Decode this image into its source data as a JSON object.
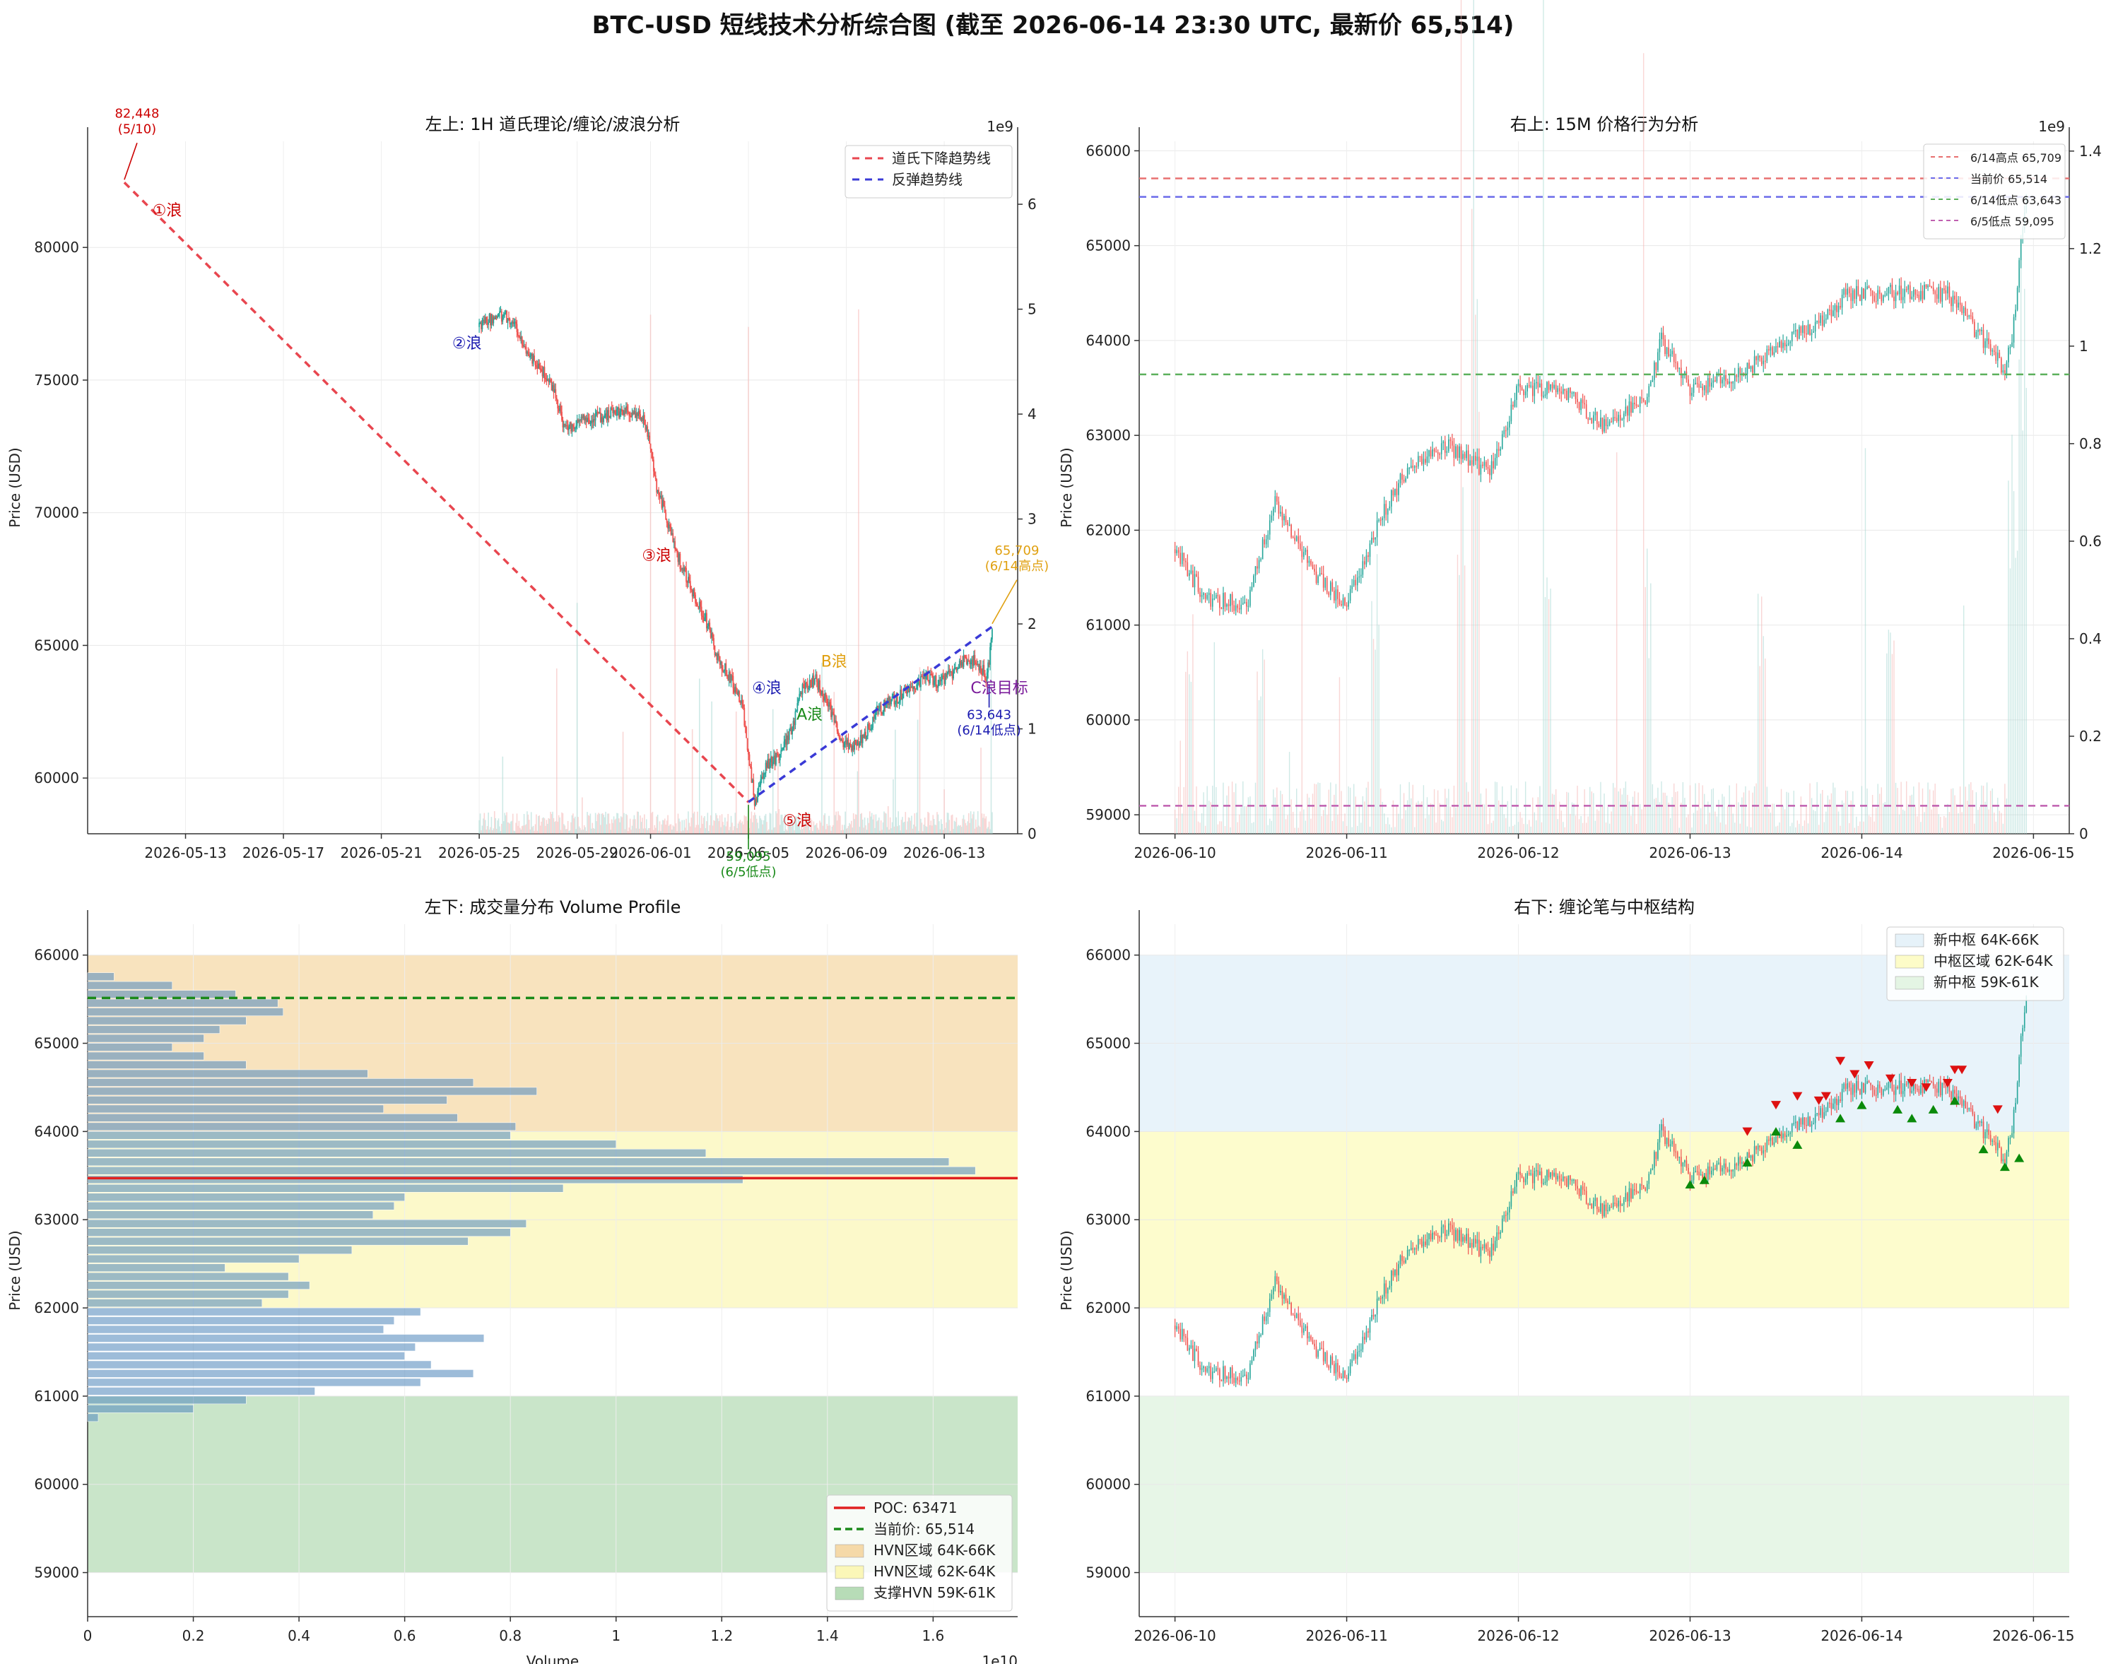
{
  "title": "BTC-USD 短线技术分析综合图 (截至 2026-06-14 23:30 UTC, 最新价 65,514)",
  "colors": {
    "up": "#26a69a",
    "down": "#ef5350",
    "upVol": "#a7d8d2",
    "downVol": "#f5b5b3"
  },
  "chart_data": [
    {
      "id": "tl",
      "type": "candlestick",
      "title": "左上: 1H 道氏理论/缠论/波浪分析",
      "ylabel": "Price (USD)",
      "ylim": [
        57900,
        84000
      ],
      "yticks": [
        60000,
        65000,
        70000,
        75000,
        80000
      ],
      "xlim": [
        "2026-05-09",
        "2026-06-16"
      ],
      "xticks": [
        "2026-05-13",
        "2026-05-17",
        "2026-05-21",
        "2026-05-25",
        "2026-05-29",
        "2026-06-01",
        "2026-06-05",
        "2026-06-09",
        "2026-06-13"
      ],
      "y2_exponent": "1e9",
      "y2lim": [
        0,
        6.6
      ],
      "y2ticks": [
        0,
        1,
        2,
        3,
        4,
        5,
        6
      ],
      "price_path": [
        [
          "2026-05-25 00:00",
          77000
        ],
        [
          "2026-05-25 18:00",
          77500
        ],
        [
          "2026-05-26 06:00",
          77300
        ],
        [
          "2026-05-26 18:00",
          76500
        ],
        [
          "2026-05-27 06:00",
          75700
        ],
        [
          "2026-05-28 00:00",
          74800
        ],
        [
          "2026-05-28 12:00",
          73200
        ],
        [
          "2026-05-29 06:00",
          73500
        ],
        [
          "2026-05-30 00:00",
          73600
        ],
        [
          "2026-05-31 00:00",
          73900
        ],
        [
          "2026-05-31 18:00",
          73500
        ],
        [
          "2026-06-01 06:00",
          71000
        ],
        [
          "2026-06-01 18:00",
          69500
        ],
        [
          "2026-06-02 06:00",
          68000
        ],
        [
          "2026-06-02 18:00",
          67000
        ],
        [
          "2026-06-03 06:00",
          66000
        ],
        [
          "2026-06-03 18:00",
          64500
        ],
        [
          "2026-06-04 06:00",
          63800
        ],
        [
          "2026-06-04 18:00",
          62800
        ],
        [
          "2026-06-05 06:00",
          59100
        ],
        [
          "2026-06-05 18:00",
          60500
        ],
        [
          "2026-06-06 06:00",
          60800
        ],
        [
          "2026-06-06 18:00",
          61800
        ],
        [
          "2026-06-07 06:00",
          63500
        ],
        [
          "2026-06-07 18:00",
          63700
        ],
        [
          "2026-06-08 06:00",
          62800
        ],
        [
          "2026-06-08 18:00",
          61400
        ],
        [
          "2026-06-09 06:00",
          61200
        ],
        [
          "2026-06-09 18:00",
          61600
        ],
        [
          "2026-06-10 06:00",
          62500
        ],
        [
          "2026-06-11 00:00",
          63000
        ],
        [
          "2026-06-11 18:00",
          63500
        ],
        [
          "2026-06-12 06:00",
          63800
        ],
        [
          "2026-06-12 18:00",
          63600
        ],
        [
          "2026-06-13 06:00",
          63900
        ],
        [
          "2026-06-13 18:00",
          64400
        ],
        [
          "2026-06-14 06:00",
          64500
        ],
        [
          "2026-06-14 18:00",
          63800
        ],
        [
          "2026-06-14 23:00",
          65500
        ]
      ],
      "price_noise": 500,
      "volume_start": "2026-05-25",
      "volume_end": "2026-06-14 23:00",
      "volume_base": 0.12,
      "volume_spikes": [
        [
          "2026-05-29",
          2.8
        ],
        [
          "2026-06-01",
          5.4
        ],
        [
          "2026-06-02",
          3.0
        ],
        [
          "2026-06-03",
          1.8
        ],
        [
          "2026-06-04 12:00",
          1.5
        ],
        [
          "2026-06-05",
          5.2
        ],
        [
          "2026-06-06",
          1.6
        ],
        [
          "2026-06-08",
          2.1
        ],
        [
          "2026-06-09 12:00",
          5.0
        ],
        [
          "2026-06-11",
          1.4
        ],
        [
          "2026-06-12",
          1.8
        ],
        [
          "2026-06-14 12:00",
          1.0
        ],
        [
          "2026-06-14 22:00",
          2.2
        ]
      ],
      "lines": [
        {
          "name": "道氏下降趋势线",
          "color": "#e8464f",
          "points": [
            [
              "2026-05-10 12:00",
              82448
            ],
            [
              "2026-06-05 00:00",
              59095
            ]
          ]
        },
        {
          "name": "反弹趋势线",
          "color": "#3a3ad6",
          "points": [
            [
              "2026-06-05 00:00",
              59095
            ],
            [
              "2026-06-14 23:00",
              65709
            ]
          ]
        }
      ],
      "legend_position": "top-right",
      "annotations": [
        {
          "text": "82,448\n(5/10)",
          "color": "#cc0000",
          "x": "2026-05-10 12:00",
          "y": 82448,
          "dx": 18,
          "dy": -70
        },
        {
          "text": "59,095\n(6/5低点)",
          "color": "#1a8a1a",
          "x": "2026-06-05 00:00",
          "y": 59095,
          "dx": 0,
          "dy": 85
        },
        {
          "text": "65,709\n(6/14高点)",
          "color": "#e0a010",
          "x": "2026-06-14 23:00",
          "y": 65709,
          "dx": 35,
          "dy": -80
        },
        {
          "text": "63,643\n(6/14低点)",
          "color": "#1a1ab0",
          "x": "2026-06-14 20:00",
          "y": 63643,
          "dx": 0,
          "dy": 55
        }
      ],
      "wave_labels": [
        {
          "text": "①浪",
          "color": "#cc0000",
          "x": "2026-05-12 06:00",
          "y": 81200
        },
        {
          "text": "②浪",
          "color": "#1a1ab0",
          "x": "2026-05-24 12:00",
          "y": 76200
        },
        {
          "text": "③浪",
          "color": "#cc0000",
          "x": "2026-06-01 06:00",
          "y": 68200
        },
        {
          "text": "④浪",
          "color": "#1a1ab0",
          "x": "2026-06-05 18:00",
          "y": 63200
        },
        {
          "text": "⑤浪",
          "color": "#cc0000",
          "x": "2026-06-07 00:00",
          "y": 58200
        },
        {
          "text": "A浪",
          "color": "#1a8a1a",
          "x": "2026-06-07 12:00",
          "y": 62200
        },
        {
          "text": "B浪",
          "color": "#e0a010",
          "x": "2026-06-08 12:00",
          "y": 64200
        },
        {
          "text": "C浪目标",
          "color": "#7a1a9a",
          "x": "2026-06-15 06:00",
          "y": 63200
        }
      ]
    },
    {
      "id": "tr",
      "type": "candlestick",
      "title": "右上: 15M 价格行为分析",
      "ylabel": "Price (USD)",
      "ylim": [
        58800,
        66100
      ],
      "yticks": [
        59000,
        60000,
        61000,
        62000,
        63000,
        64000,
        65000,
        66000
      ],
      "xlim": [
        "2026-06-09 19:00",
        "2026-06-15 05:00"
      ],
      "xticks": [
        "2026-06-10",
        "2026-06-11",
        "2026-06-12",
        "2026-06-13",
        "2026-06-14",
        "2026-06-15"
      ],
      "y2_exponent": "1e9",
      "y2lim": [
        0,
        1.42
      ],
      "y2ticks": [
        0,
        0.2,
        0.4,
        0.6,
        0.8,
        1.0,
        1.2,
        1.4
      ],
      "price_path": [
        [
          "2026-06-10 00:00",
          61800
        ],
        [
          "2026-06-10 04:00",
          61300
        ],
        [
          "2026-06-10 10:00",
          61200
        ],
        [
          "2026-06-10 14:00",
          62300
        ],
        [
          "2026-06-10 20:00",
          61500
        ],
        [
          "2026-06-11 00:00",
          61200
        ],
        [
          "2026-06-11 04:00",
          62000
        ],
        [
          "2026-06-11 08:00",
          62600
        ],
        [
          "2026-06-11 14:00",
          62900
        ],
        [
          "2026-06-11 20:00",
          62600
        ],
        [
          "2026-06-12 00:00",
          63500
        ],
        [
          "2026-06-12 06:00",
          63500
        ],
        [
          "2026-06-12 12:00",
          63100
        ],
        [
          "2026-06-12 18:00",
          63400
        ],
        [
          "2026-06-12 20:00",
          64000
        ],
        [
          "2026-06-13 00:00",
          63500
        ],
        [
          "2026-06-13 06:00",
          63600
        ],
        [
          "2026-06-13 12:00",
          63900
        ],
        [
          "2026-06-13 18:00",
          64200
        ],
        [
          "2026-06-13 22:00",
          64500
        ],
        [
          "2026-06-14 06:00",
          64500
        ],
        [
          "2026-06-14 12:00",
          64500
        ],
        [
          "2026-06-14 18:00",
          63900
        ],
        [
          "2026-06-14 20:00",
          63700
        ],
        [
          "2026-06-14 21:00",
          64000
        ],
        [
          "2026-06-14 23:00",
          65600
        ]
      ],
      "price_noise": 180,
      "volume_start": "2026-06-10 00:00",
      "volume_end": "2026-06-14 23:00",
      "volume_base": 0.06,
      "volume_spikes": [
        [
          "2026-06-10 02:00",
          0.5
        ],
        [
          "2026-06-10 12:00",
          0.45
        ],
        [
          "2026-06-11 04:00",
          0.6
        ],
        [
          "2026-06-11 16:00",
          0.75
        ],
        [
          "2026-06-11 18:00",
          1.35
        ],
        [
          "2026-06-12 04:00",
          0.55
        ],
        [
          "2026-06-12 18:00",
          0.6
        ],
        [
          "2026-06-13 10:00",
          0.5
        ],
        [
          "2026-06-14 04:00",
          0.45
        ],
        [
          "2026-06-14 21:00",
          0.85
        ],
        [
          "2026-06-14 22:30",
          1.3
        ]
      ],
      "hlines": [
        {
          "label": "6/14高点 65,709",
          "value": 65709,
          "color": "#e87070"
        },
        {
          "label": "当前价 65,514",
          "value": 65514,
          "color": "#6b6bea"
        },
        {
          "label": "6/14低点 63,643",
          "value": 63643,
          "color": "#5cb05c"
        },
        {
          "label": "6/5低点 59,095",
          "value": 59095,
          "color": "#c060b0"
        }
      ],
      "legend_position": "top-right"
    },
    {
      "id": "bl",
      "type": "volume_profile",
      "title": "左下: 成交量分布 Volume Profile",
      "ylabel": "Price (USD)",
      "xlabel": "Volume",
      "x_exponent": "1e10",
      "xlim": [
        0,
        1.76
      ],
      "xticks": [
        0,
        0.2,
        0.4,
        0.6,
        0.8,
        1.0,
        1.2,
        1.4,
        1.6
      ],
      "ylim": [
        58500,
        66350
      ],
      "yticks": [
        59000,
        60000,
        61000,
        62000,
        63000,
        64000,
        65000,
        66000
      ],
      "bins": [
        [
          60700,
          0.02
        ],
        [
          60800,
          0.2
        ],
        [
          60900,
          0.3
        ],
        [
          61000,
          0.43
        ],
        [
          61100,
          0.63
        ],
        [
          61200,
          0.73
        ],
        [
          61300,
          0.65
        ],
        [
          61400,
          0.6
        ],
        [
          61500,
          0.62
        ],
        [
          61600,
          0.75
        ],
        [
          61700,
          0.56
        ],
        [
          61800,
          0.58
        ],
        [
          61900,
          0.63
        ],
        [
          62000,
          0.33
        ],
        [
          62100,
          0.38
        ],
        [
          62200,
          0.42
        ],
        [
          62300,
          0.38
        ],
        [
          62400,
          0.26
        ],
        [
          62500,
          0.4
        ],
        [
          62600,
          0.5
        ],
        [
          62700,
          0.72
        ],
        [
          62800,
          0.8
        ],
        [
          62900,
          0.83
        ],
        [
          63000,
          0.54
        ],
        [
          63100,
          0.58
        ],
        [
          63200,
          0.6
        ],
        [
          63300,
          0.9
        ],
        [
          63400,
          1.24
        ],
        [
          63500,
          1.68
        ],
        [
          63600,
          1.63
        ],
        [
          63700,
          1.17
        ],
        [
          63800,
          1.0
        ],
        [
          63900,
          0.8
        ],
        [
          64000,
          0.81
        ],
        [
          64100,
          0.7
        ],
        [
          64200,
          0.56
        ],
        [
          64300,
          0.68
        ],
        [
          64400,
          0.85
        ],
        [
          64500,
          0.73
        ],
        [
          64600,
          0.53
        ],
        [
          64700,
          0.3
        ],
        [
          64800,
          0.22
        ],
        [
          64900,
          0.16
        ],
        [
          65000,
          0.22
        ],
        [
          65100,
          0.25
        ],
        [
          65200,
          0.3
        ],
        [
          65300,
          0.37
        ],
        [
          65400,
          0.36
        ],
        [
          65500,
          0.28
        ],
        [
          65600,
          0.16
        ],
        [
          65700,
          0.05
        ]
      ],
      "poc": {
        "label": "POC: 63471",
        "value": 63471,
        "color": "#e02020"
      },
      "current": {
        "label": "当前价: 65,514",
        "value": 65514,
        "color": "#1a8a1a"
      },
      "zones": [
        {
          "label": "HVN区域 64K-66K",
          "from": 64000,
          "to": 66000,
          "color": "#f5d9a8"
        },
        {
          "label": "HVN区域 62K-64K",
          "from": 62000,
          "to": 64000,
          "color": "#fbf7b8"
        },
        {
          "label": "支撑HVN 59K-61K",
          "from": 59000,
          "to": 61000,
          "color": "#b7dcb7"
        }
      ],
      "legend_position": "lower-right"
    },
    {
      "id": "br",
      "type": "candlestick",
      "title": "右下: 缠论笔与中枢结构",
      "ylabel": "Price (USD)",
      "ylim": [
        58500,
        66350
      ],
      "yticks": [
        59000,
        60000,
        61000,
        62000,
        63000,
        64000,
        65000,
        66000
      ],
      "xlim": [
        "2026-06-09 19:00",
        "2026-06-15 05:00"
      ],
      "xticks": [
        "2026-06-10",
        "2026-06-11",
        "2026-06-12",
        "2026-06-13",
        "2026-06-14",
        "2026-06-15"
      ],
      "same_series_as": "tr",
      "zones": [
        {
          "label": "新中枢 64K-66K",
          "from": 64000,
          "to": 66000,
          "color": "#e6f2f9"
        },
        {
          "label": "中枢区域 62K-64K",
          "from": 62000,
          "to": 64000,
          "color": "#fdfcc8"
        },
        {
          "label": "新中枢 59K-61K",
          "from": 59000,
          "to": 61000,
          "color": "#e4f5e4"
        }
      ],
      "tops": [
        [
          "2026-06-13 08:00",
          63950
        ],
        [
          "2026-06-13 12:00",
          64250
        ],
        [
          "2026-06-13 15:00",
          64350
        ],
        [
          "2026-06-13 18:00",
          64300
        ],
        [
          "2026-06-13 19:00",
          64350
        ],
        [
          "2026-06-13 21:00",
          64750
        ],
        [
          "2026-06-13 23:00",
          64600
        ],
        [
          "2026-06-14 01:00",
          64700
        ],
        [
          "2026-06-14 04:00",
          64550
        ],
        [
          "2026-06-14 07:00",
          64500
        ],
        [
          "2026-06-14 09:00",
          64450
        ],
        [
          "2026-06-14 12:00",
          64500
        ],
        [
          "2026-06-14 13:00",
          64650
        ],
        [
          "2026-06-14 14:00",
          64650
        ],
        [
          "2026-06-14 19:00",
          64200
        ]
      ],
      "bottoms": [
        [
          "2026-06-13 00:00",
          63450
        ],
        [
          "2026-06-13 02:00",
          63500
        ],
        [
          "2026-06-13 08:00",
          63700
        ],
        [
          "2026-06-13 12:00",
          64050
        ],
        [
          "2026-06-13 15:00",
          63900
        ],
        [
          "2026-06-13 21:00",
          64200
        ],
        [
          "2026-06-14 00:00",
          64350
        ],
        [
          "2026-06-14 05:00",
          64300
        ],
        [
          "2026-06-14 07:00",
          64200
        ],
        [
          "2026-06-14 10:00",
          64300
        ],
        [
          "2026-06-14 13:00",
          64400
        ],
        [
          "2026-06-14 17:00",
          63850
        ],
        [
          "2026-06-14 20:00",
          63650
        ],
        [
          "2026-06-14 22:00",
          63750
        ]
      ],
      "legend_position": "top-right"
    }
  ]
}
